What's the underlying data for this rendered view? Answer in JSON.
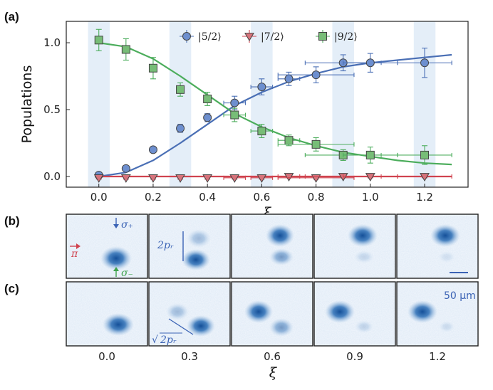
{
  "panels": {
    "a": "(a)",
    "b": "(b)",
    "c": "(c)"
  },
  "chart_data": {
    "type": "scatter",
    "xlabel": "ξ",
    "ylabel": "Populations",
    "xlim": [
      -0.12,
      1.36
    ],
    "ylim": [
      -0.08,
      1.16
    ],
    "xticks": [
      0.0,
      0.2,
      0.4,
      0.6,
      0.8,
      1.0,
      1.2
    ],
    "xtick_labels": [
      "0.0",
      "0.2",
      "0.4",
      "0.6",
      "0.8",
      "1.0",
      "1.2"
    ],
    "yticks": [
      0.0,
      0.5,
      1.0
    ],
    "ytick_labels": [
      "0.0",
      "0.5",
      "1.0"
    ],
    "legend_placement": "top-center",
    "shaded_bands": [
      [
        -0.04,
        0.04
      ],
      [
        0.26,
        0.34
      ],
      [
        0.56,
        0.64
      ],
      [
        0.86,
        0.94
      ],
      [
        1.16,
        1.24
      ]
    ],
    "series": [
      {
        "name": "|5/2⟩",
        "marker": "circle",
        "color": "#6d8fcf",
        "line_color": "#4a6fb5",
        "x": [
          0.0,
          0.1,
          0.2,
          0.3,
          0.4,
          0.5,
          0.6,
          0.7,
          0.8,
          0.9,
          1.0,
          1.2
        ],
        "y": [
          0.01,
          0.06,
          0.2,
          0.36,
          0.44,
          0.55,
          0.67,
          0.73,
          0.76,
          0.85,
          0.85,
          0.85
        ],
        "xerr": [
          0.0,
          0.0,
          0.0,
          0.0,
          0.0,
          0.04,
          0.04,
          0.04,
          0.14,
          0.14,
          0.1,
          0.1
        ],
        "yerr": [
          0.0,
          0.0,
          0.0,
          0.03,
          0.03,
          0.05,
          0.06,
          0.05,
          0.06,
          0.06,
          0.07,
          0.11
        ],
        "fit_x": [
          0.0,
          0.1,
          0.2,
          0.3,
          0.4,
          0.5,
          0.6,
          0.7,
          0.8,
          0.9,
          1.0,
          1.1,
          1.2,
          1.3
        ],
        "fit_y": [
          0.0,
          0.03,
          0.12,
          0.25,
          0.39,
          0.53,
          0.63,
          0.71,
          0.77,
          0.82,
          0.85,
          0.87,
          0.89,
          0.91
        ]
      },
      {
        "name": "|7/2⟩",
        "marker": "triangle-down",
        "color": "#d7737b",
        "line_color": "#d0434f",
        "x": [
          0.0,
          0.1,
          0.2,
          0.3,
          0.4,
          0.5,
          0.6,
          0.7,
          0.8,
          0.9,
          1.0,
          1.2
        ],
        "y": [
          -0.01,
          -0.01,
          -0.01,
          -0.01,
          -0.01,
          -0.01,
          -0.01,
          0.0,
          -0.01,
          0.0,
          0.0,
          0.0
        ],
        "xerr": [
          0.0,
          0.0,
          0.0,
          0.0,
          0.0,
          0.04,
          0.04,
          0.04,
          0.14,
          0.14,
          0.1,
          0.1
        ],
        "yerr": [
          0.01,
          0.01,
          0.01,
          0.01,
          0.01,
          0.01,
          0.01,
          0.01,
          0.01,
          0.01,
          0.01,
          0.01
        ],
        "fit_x": [
          0.0,
          1.3
        ],
        "fit_y": [
          0.0,
          0.0
        ]
      },
      {
        "name": "|9/2⟩",
        "marker": "square",
        "color": "#77bd77",
        "line_color": "#4cad5c",
        "x": [
          0.0,
          0.1,
          0.2,
          0.3,
          0.4,
          0.5,
          0.6,
          0.7,
          0.8,
          0.9,
          1.0,
          1.2
        ],
        "y": [
          1.02,
          0.95,
          0.81,
          0.65,
          0.58,
          0.46,
          0.34,
          0.27,
          0.24,
          0.16,
          0.16,
          0.16
        ],
        "xerr": [
          0.0,
          0.0,
          0.0,
          0.0,
          0.0,
          0.04,
          0.04,
          0.04,
          0.14,
          0.14,
          0.1,
          0.1
        ],
        "yerr": [
          0.08,
          0.08,
          0.08,
          0.05,
          0.05,
          0.05,
          0.05,
          0.04,
          0.05,
          0.04,
          0.06,
          0.07
        ],
        "fit_x": [
          0.0,
          0.1,
          0.2,
          0.3,
          0.4,
          0.5,
          0.6,
          0.7,
          0.8,
          0.9,
          1.0,
          1.1,
          1.2,
          1.3
        ],
        "fit_y": [
          1.0,
          0.97,
          0.88,
          0.75,
          0.61,
          0.47,
          0.37,
          0.29,
          0.23,
          0.18,
          0.15,
          0.12,
          0.1,
          0.09
        ]
      }
    ]
  },
  "images": {
    "bottom_labels": [
      "0.0",
      "0.3",
      "0.6",
      "0.9",
      "1.2"
    ],
    "xlabel": "ξ",
    "annotations": {
      "sigma_plus": "σ₊",
      "sigma_minus": "σ₋",
      "pi": "π",
      "spacing_b": "2pᵣ",
      "spacing_c_root": "√",
      "spacing_c": "2pᵣ",
      "scale_bar": "50 μm"
    },
    "colors": {
      "blob": "#1f5fa8",
      "frame": "#222222",
      "sigma_plus": "#3b63b5",
      "sigma_minus": "#3fa34d",
      "pi": "#d0434f"
    }
  }
}
